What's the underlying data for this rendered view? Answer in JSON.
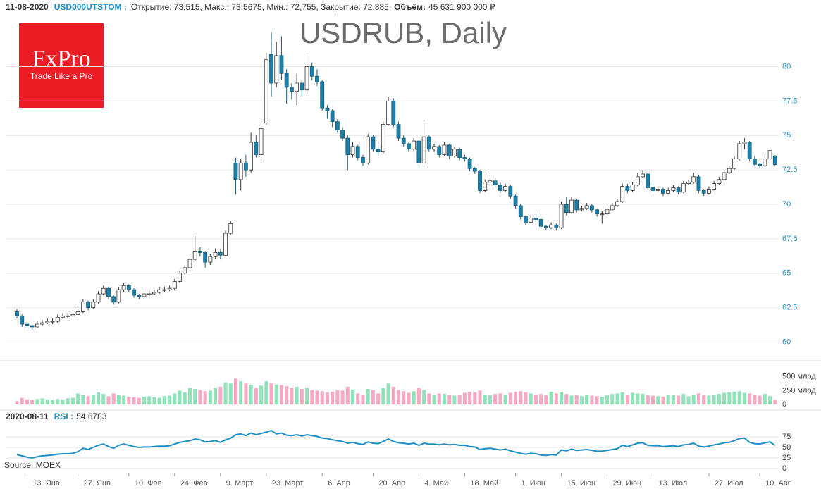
{
  "header": {
    "date": "11-08-2020",
    "symbol": "USD000UTSTOM :",
    "ohlc": "Открытие: 73,515, Макс.: 73,5675, Мин.: 72,755, Закрытие: 72,885,",
    "volume_label": "Объём:",
    "volume_value": "45 631 900 000 ₽"
  },
  "logo": {
    "brand": "FxPro",
    "slogan": "Trade Like a Pro"
  },
  "source": "Source: MOEX",
  "chart_data": {
    "type": "candlestick",
    "title": "USDRUB, Daily",
    "up_color": "#ffffff",
    "down_color": "#1b7fa8",
    "candles": [
      [
        62.2,
        62.4,
        61.7,
        61.9
      ],
      [
        61.9,
        62.0,
        61.1,
        61.3
      ],
      [
        61.3,
        61.4,
        61.0,
        61.2
      ],
      [
        61.2,
        61.3,
        60.9,
        61.1
      ],
      [
        61.1,
        61.5,
        61.0,
        61.3
      ],
      [
        61.3,
        61.6,
        61.2,
        61.4
      ],
      [
        61.4,
        61.7,
        61.3,
        61.5
      ],
      [
        61.5,
        61.7,
        61.3,
        61.5
      ],
      [
        61.5,
        62.0,
        61.4,
        61.8
      ],
      [
        61.8,
        62.1,
        61.7,
        61.9
      ],
      [
        61.9,
        62.1,
        61.7,
        61.9
      ],
      [
        61.9,
        62.2,
        61.8,
        62.0
      ],
      [
        62.0,
        62.4,
        61.9,
        62.2
      ],
      [
        62.2,
        63.1,
        62.1,
        62.9
      ],
      [
        62.9,
        63.0,
        62.3,
        62.5
      ],
      [
        62.5,
        63.1,
        62.4,
        62.9
      ],
      [
        62.9,
        63.7,
        62.8,
        63.5
      ],
      [
        63.5,
        64.1,
        63.4,
        63.9
      ],
      [
        63.9,
        64.0,
        63.1,
        63.3
      ],
      [
        63.3,
        63.4,
        62.7,
        62.9
      ],
      [
        62.9,
        64.0,
        62.8,
        63.8
      ],
      [
        63.8,
        64.3,
        63.6,
        64.1
      ],
      [
        64.1,
        64.2,
        63.6,
        63.8
      ],
      [
        63.8,
        63.9,
        63.2,
        63.4
      ],
      [
        63.4,
        63.5,
        63.1,
        63.3
      ],
      [
        63.3,
        63.7,
        63.2,
        63.5
      ],
      [
        63.5,
        63.7,
        63.3,
        63.5
      ],
      [
        63.5,
        63.8,
        63.4,
        63.6
      ],
      [
        63.6,
        64.0,
        63.5,
        63.8
      ],
      [
        63.8,
        64.0,
        63.6,
        63.8
      ],
      [
        63.8,
        64.1,
        63.7,
        63.9
      ],
      [
        63.9,
        64.6,
        63.8,
        64.4
      ],
      [
        64.4,
        65.2,
        64.3,
        65.0
      ],
      [
        65.0,
        65.6,
        64.9,
        65.4
      ],
      [
        65.4,
        66.2,
        65.3,
        66.0
      ],
      [
        66.0,
        67.7,
        65.9,
        66.6
      ],
      [
        66.6,
        66.9,
        66.2,
        66.5
      ],
      [
        66.5,
        66.6,
        65.4,
        65.8
      ],
      [
        65.8,
        66.4,
        65.6,
        66.2
      ],
      [
        66.2,
        66.8,
        66.0,
        66.5
      ],
      [
        66.5,
        66.7,
        66.0,
        66.3
      ],
      [
        66.3,
        68.1,
        66.2,
        67.9
      ],
      [
        67.9,
        68.8,
        67.8,
        68.6
      ],
      [
        73.0,
        73.4,
        70.7,
        71.8
      ],
      [
        71.8,
        73.3,
        71.0,
        73.0
      ],
      [
        73.0,
        73.6,
        72.0,
        72.5
      ],
      [
        72.5,
        75.2,
        72.3,
        74.5
      ],
      [
        74.5,
        75.0,
        73.4,
        73.6
      ],
      [
        73.6,
        75.7,
        73.0,
        75.5
      ],
      [
        75.9,
        81.0,
        75.8,
        80.5
      ],
      [
        80.9,
        82.5,
        77.8,
        78.8
      ],
      [
        78.8,
        81.8,
        78.5,
        80.8
      ],
      [
        80.8,
        82.2,
        79.0,
        79.5
      ],
      [
        79.5,
        79.8,
        77.3,
        78.5
      ],
      [
        78.5,
        78.8,
        77.6,
        78.2
      ],
      [
        78.2,
        79.5,
        77.2,
        78.8
      ],
      [
        78.8,
        79.0,
        77.8,
        78.3
      ],
      [
        78.3,
        81.0,
        78.0,
        80.0
      ],
      [
        80.0,
        80.3,
        79.0,
        79.3
      ],
      [
        79.3,
        79.8,
        78.6,
        78.9
      ],
      [
        78.9,
        79.0,
        76.8,
        77.0
      ],
      [
        77.0,
        77.2,
        76.2,
        76.8
      ],
      [
        76.8,
        76.9,
        75.6,
        76.0
      ],
      [
        76.0,
        76.2,
        75.2,
        75.4
      ],
      [
        75.4,
        75.6,
        74.6,
        74.8
      ],
      [
        74.8,
        75.0,
        72.5,
        73.6
      ],
      [
        73.6,
        74.5,
        73.4,
        74.2
      ],
      [
        74.2,
        74.3,
        73.2,
        73.4
      ],
      [
        73.4,
        73.6,
        72.8,
        73.0
      ],
      [
        73.0,
        75.1,
        72.9,
        74.9
      ],
      [
        74.9,
        75.0,
        73.8,
        74.0
      ],
      [
        74.0,
        74.3,
        73.5,
        73.8
      ],
      [
        73.8,
        76.0,
        73.7,
        75.8
      ],
      [
        75.8,
        77.8,
        75.7,
        77.5
      ],
      [
        77.5,
        77.7,
        75.6,
        75.8
      ],
      [
        75.8,
        76.0,
        74.6,
        74.8
      ],
      [
        74.8,
        75.0,
        74.2,
        74.4
      ],
      [
        74.4,
        74.5,
        73.8,
        74.0
      ],
      [
        74.0,
        74.8,
        73.9,
        74.6
      ],
      [
        74.6,
        74.7,
        72.8,
        73.0
      ],
      [
        73.0,
        75.9,
        72.9,
        74.9
      ],
      [
        74.9,
        75.0,
        73.8,
        74.0
      ],
      [
        74.0,
        74.4,
        73.8,
        74.2
      ],
      [
        74.2,
        74.3,
        73.4,
        73.6
      ],
      [
        73.6,
        74.5,
        73.5,
        74.3
      ],
      [
        74.3,
        74.4,
        73.3,
        73.5
      ],
      [
        73.5,
        74.2,
        73.4,
        74.0
      ],
      [
        74.0,
        74.1,
        73.2,
        73.4
      ],
      [
        73.4,
        73.6,
        73.1,
        73.3
      ],
      [
        73.3,
        73.4,
        72.4,
        72.6
      ],
      [
        72.6,
        72.7,
        72.2,
        72.4
      ],
      [
        72.4,
        72.5,
        70.8,
        71.0
      ],
      [
        71.0,
        71.8,
        70.9,
        71.6
      ],
      [
        71.6,
        72.3,
        71.4,
        71.7
      ],
      [
        71.7,
        71.9,
        71.2,
        71.4
      ],
      [
        71.4,
        71.6,
        70.8,
        71.0
      ],
      [
        71.0,
        71.5,
        70.9,
        71.3
      ],
      [
        71.3,
        71.4,
        70.4,
        70.6
      ],
      [
        70.6,
        70.7,
        69.7,
        69.9
      ],
      [
        69.9,
        70.0,
        68.9,
        69.1
      ],
      [
        69.1,
        69.2,
        68.5,
        68.7
      ],
      [
        68.7,
        69.2,
        68.6,
        69.0
      ],
      [
        69.0,
        69.4,
        68.7,
        68.9
      ],
      [
        68.9,
        69.0,
        68.2,
        68.4
      ],
      [
        68.4,
        68.5,
        68.1,
        68.3
      ],
      [
        68.3,
        68.7,
        68.2,
        68.5
      ],
      [
        68.5,
        68.6,
        68.1,
        68.3
      ],
      [
        68.3,
        70.2,
        68.2,
        70.0
      ],
      [
        70.0,
        70.5,
        69.2,
        69.4
      ],
      [
        69.4,
        70.5,
        69.3,
        70.3
      ],
      [
        70.3,
        70.4,
        69.4,
        69.6
      ],
      [
        69.6,
        69.9,
        69.5,
        69.7
      ],
      [
        69.7,
        70.1,
        69.6,
        69.9
      ],
      [
        69.9,
        70.0,
        69.4,
        69.6
      ],
      [
        69.6,
        69.7,
        69.1,
        69.3
      ],
      [
        69.3,
        69.5,
        68.6,
        69.3
      ],
      [
        69.3,
        69.8,
        69.2,
        69.6
      ],
      [
        69.6,
        70.1,
        69.5,
        69.9
      ],
      [
        69.9,
        70.4,
        69.8,
        70.2
      ],
      [
        70.2,
        71.5,
        70.1,
        71.3
      ],
      [
        71.3,
        71.5,
        70.8,
        71.0
      ],
      [
        71.0,
        71.6,
        70.9,
        71.4
      ],
      [
        71.4,
        72.3,
        71.3,
        72.0
      ],
      [
        72.0,
        72.5,
        71.9,
        72.2
      ],
      [
        72.2,
        72.3,
        71.0,
        71.2
      ],
      [
        71.2,
        71.5,
        70.8,
        71.0
      ],
      [
        71.0,
        71.3,
        70.9,
        71.1
      ],
      [
        71.1,
        71.2,
        70.6,
        70.8
      ],
      [
        70.8,
        71.2,
        70.7,
        71.0
      ],
      [
        71.0,
        71.4,
        70.9,
        71.2
      ],
      [
        71.2,
        71.3,
        70.7,
        70.9
      ],
      [
        70.9,
        71.7,
        70.8,
        71.5
      ],
      [
        71.5,
        71.8,
        71.4,
        71.6
      ],
      [
        71.6,
        72.3,
        71.5,
        72.0
      ],
      [
        72.0,
        72.1,
        70.8,
        71.0
      ],
      [
        71.0,
        71.1,
        70.6,
        70.8
      ],
      [
        70.8,
        71.3,
        70.7,
        71.1
      ],
      [
        71.1,
        71.7,
        71.0,
        71.5
      ],
      [
        71.5,
        72.0,
        71.4,
        71.8
      ],
      [
        71.8,
        72.5,
        71.7,
        72.3
      ],
      [
        72.3,
        72.8,
        72.2,
        72.6
      ],
      [
        72.6,
        73.5,
        72.5,
        73.3
      ],
      [
        73.3,
        74.6,
        73.2,
        74.4
      ],
      [
        74.4,
        74.8,
        74.0,
        74.5
      ],
      [
        74.5,
        74.6,
        73.1,
        73.3
      ],
      [
        73.3,
        73.5,
        72.8,
        72.9
      ],
      [
        72.9,
        73.0,
        72.6,
        72.8
      ],
      [
        72.8,
        73.5,
        72.7,
        73.3
      ],
      [
        73.3,
        74.1,
        73.2,
        73.9
      ],
      [
        73.515,
        73.5675,
        72.755,
        72.885
      ]
    ],
    "ylim": [
      59,
      83.3
    ],
    "yticks": [
      60,
      62.5,
      65,
      67.5,
      70,
      72.5,
      75,
      77.5,
      80
    ],
    "grid": true,
    "xticks": [
      {
        "value": 2,
        "label": "13. Янв"
      },
      {
        "value": 12,
        "label": "27. Янв"
      },
      {
        "value": 22,
        "label": "10. Фев"
      },
      {
        "value": 31,
        "label": "24. Фев"
      },
      {
        "value": 40,
        "label": "9. Март"
      },
      {
        "value": 49,
        "label": "23. Март"
      },
      {
        "value": 60,
        "label": "6. Апр"
      },
      {
        "value": 70,
        "label": "20. Апр"
      },
      {
        "value": 79,
        "label": "4. Май"
      },
      {
        "value": 88,
        "label": "18. Май"
      },
      {
        "value": 98,
        "label": "1. Июн"
      },
      {
        "value": 107,
        "label": "15. Июн"
      },
      {
        "value": 116,
        "label": "29. Июн"
      },
      {
        "value": 125,
        "label": "13. Июл"
      },
      {
        "value": 136,
        "label": "27. Июл"
      },
      {
        "value": 146,
        "label": "10. Авг"
      }
    ],
    "volume": {
      "up_color": "#8fe3b8",
      "down_color": "#f5a9c2",
      "ylim": [
        0,
        600
      ],
      "yticks": [
        0,
        {
          "value": 250,
          "label": "250 млрд"
        },
        {
          "value": 500,
          "label": "500 млрд"
        }
      ],
      "values": [
        60,
        120,
        90,
        80,
        100,
        110,
        90,
        80,
        100,
        90,
        110,
        120,
        200,
        170,
        150,
        180,
        220,
        190,
        150,
        200,
        170,
        160,
        140,
        130,
        120,
        140,
        150,
        130,
        120,
        150,
        160,
        200,
        250,
        220,
        300,
        280,
        260,
        240,
        250,
        300,
        320,
        400,
        380,
        470,
        420,
        380,
        360,
        300,
        340,
        420,
        380,
        360,
        350,
        330,
        300,
        320,
        280,
        300,
        260,
        250,
        240,
        220,
        230,
        260,
        250,
        320,
        270,
        200,
        180,
        280,
        260,
        200,
        300,
        380,
        320,
        260,
        240,
        210,
        240,
        300,
        260,
        200,
        180,
        200,
        190,
        170,
        160,
        180,
        210,
        230,
        220,
        250,
        180,
        170,
        190,
        200,
        180,
        210,
        230,
        240,
        220,
        200,
        180,
        190,
        170,
        230,
        200,
        220,
        190,
        160,
        170,
        150,
        180,
        160,
        150,
        140,
        170,
        190,
        200,
        220,
        180,
        210,
        200,
        190,
        170,
        160,
        150,
        140,
        180,
        170,
        160,
        190,
        150,
        180,
        200,
        170,
        160,
        180,
        190,
        210,
        220,
        230,
        240,
        210,
        200,
        180,
        160,
        190,
        150,
        80
      ]
    },
    "rsi": {
      "date": "2020-08-11",
      "name": "RSI :",
      "color": "#1e8fc6",
      "ylim": [
        0,
        100
      ],
      "yticks": [
        0,
        25,
        50,
        75
      ],
      "values": [
        33,
        30,
        27,
        25,
        28,
        30,
        31,
        32,
        34,
        35,
        35,
        36,
        40,
        48,
        45,
        50,
        55,
        58,
        52,
        48,
        55,
        58,
        55,
        52,
        50,
        51,
        51,
        52,
        53,
        53,
        54,
        58,
        62,
        64,
        66,
        70,
        68,
        63,
        64,
        66,
        62,
        68,
        72,
        80,
        82,
        78,
        84,
        80,
        83,
        86,
        90,
        82,
        84,
        79,
        78,
        80,
        77,
        80,
        78,
        76,
        72,
        71,
        68,
        66,
        64,
        60,
        62,
        59,
        57,
        63,
        60,
        59,
        64,
        70,
        64,
        61,
        60,
        58,
        60,
        55,
        60,
        58,
        58,
        56,
        58,
        56,
        57,
        55,
        55,
        52,
        51,
        45,
        47,
        48,
        46,
        44,
        46,
        42,
        39,
        36,
        34,
        36,
        35,
        32,
        31,
        33,
        32,
        44,
        42,
        46,
        43,
        44,
        45,
        43,
        41,
        41,
        43,
        45,
        47,
        55,
        52,
        56,
        60,
        61,
        55,
        54,
        54,
        52,
        53,
        54,
        52,
        56,
        57,
        60,
        53,
        51,
        53,
        56,
        58,
        61,
        62,
        66,
        71,
        72,
        62,
        59,
        58,
        61,
        63,
        54.6783
      ]
    }
  }
}
